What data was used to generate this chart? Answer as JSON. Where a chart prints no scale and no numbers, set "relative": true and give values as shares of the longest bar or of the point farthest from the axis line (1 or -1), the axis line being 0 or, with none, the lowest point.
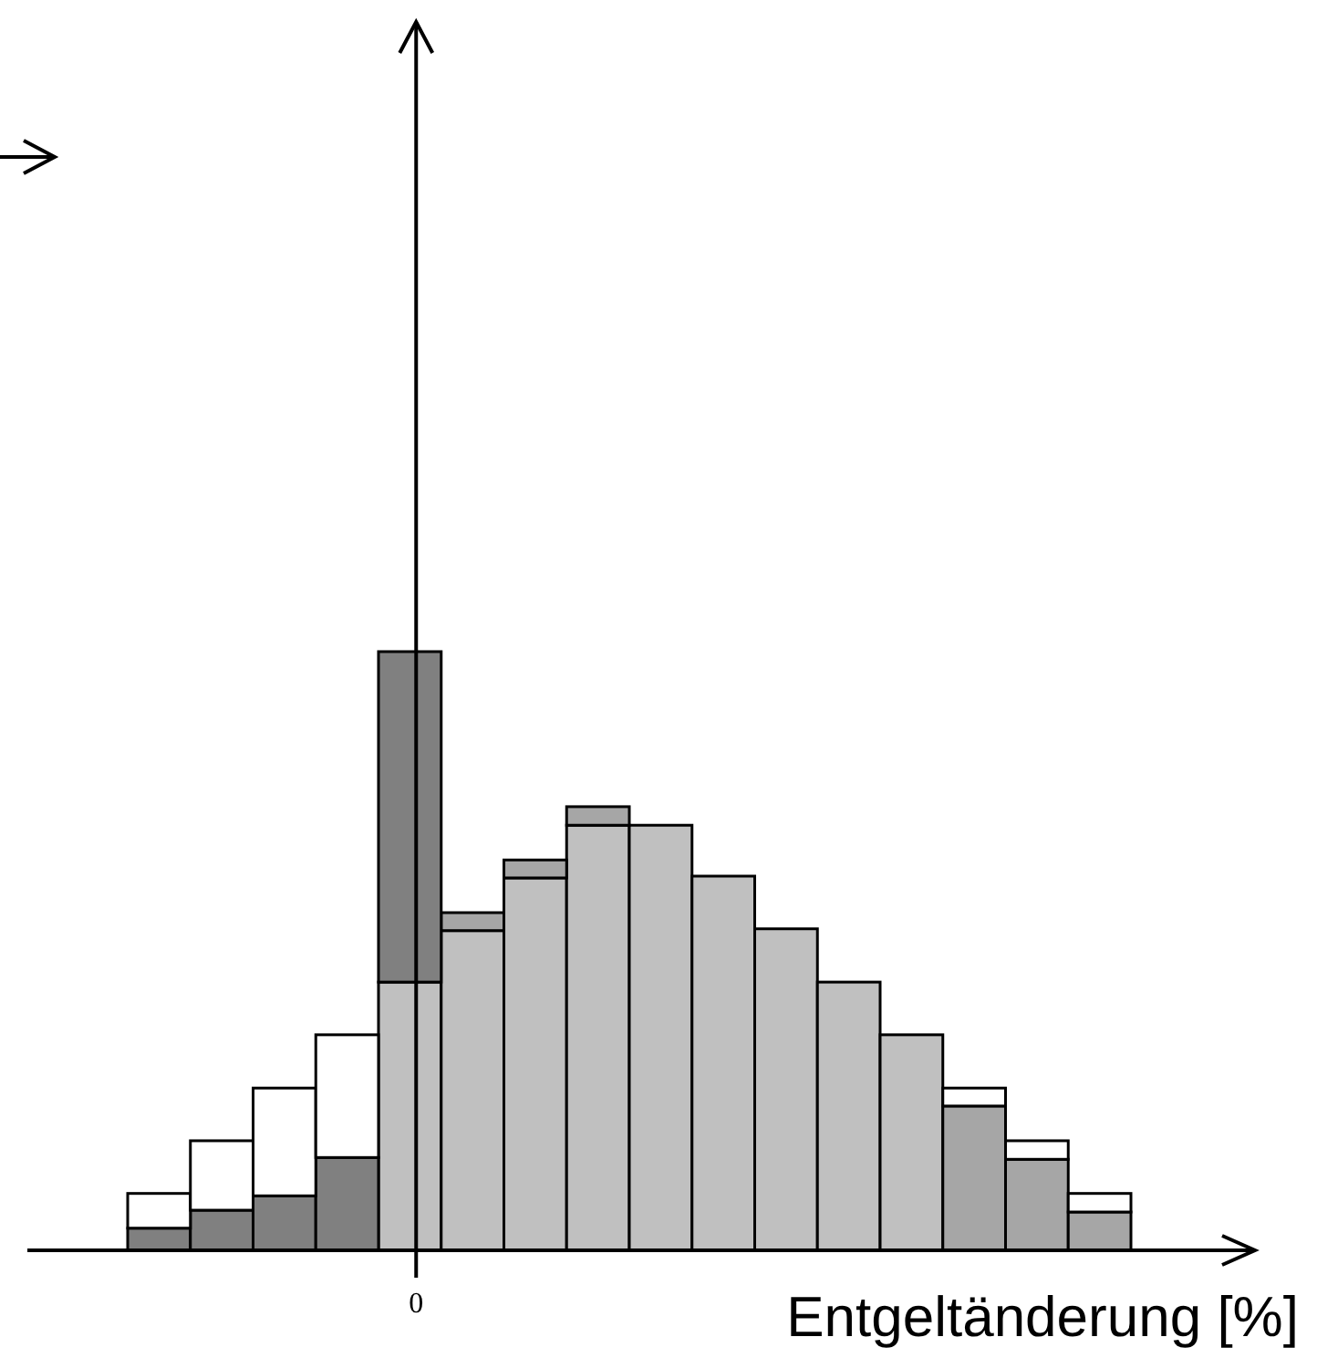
{
  "chart_data": {
    "type": "bar",
    "xlabel": "Entgeltänderung [%]",
    "relative": true,
    "stacked": true,
    "categories": [
      null,
      null,
      null,
      null,
      null,
      null,
      null,
      null,
      null,
      null,
      null,
      null,
      null,
      null,
      null,
      null
    ],
    "annotations": [
      "0"
    ],
    "series": [
      {
        "color": "#c0c0c0",
        "values": [
          null,
          null,
          null,
          null,
          0.448,
          0.534,
          0.622,
          0.71,
          0.71,
          0.625,
          0.537,
          0.448,
          0.36,
          null,
          null,
          null
        ]
      },
      {
        "color": "#a6a6a6",
        "values": [
          null,
          null,
          null,
          null,
          null,
          0.03,
          0.03,
          0.031,
          null,
          null,
          null,
          null,
          null,
          0.241,
          0.152,
          0.064
        ]
      },
      {
        "color": "#808080",
        "values": [
          0.037,
          0.067,
          0.091,
          0.155,
          0.552,
          null,
          null,
          null,
          null,
          null,
          null,
          null,
          null,
          null,
          null,
          null
        ]
      },
      {
        "color": "#ffffff",
        "values": [
          0.058,
          0.116,
          0.18,
          0.205,
          null,
          null,
          null,
          null,
          null,
          null,
          null,
          null,
          null,
          0.03,
          0.031,
          0.031
        ]
      }
    ]
  }
}
